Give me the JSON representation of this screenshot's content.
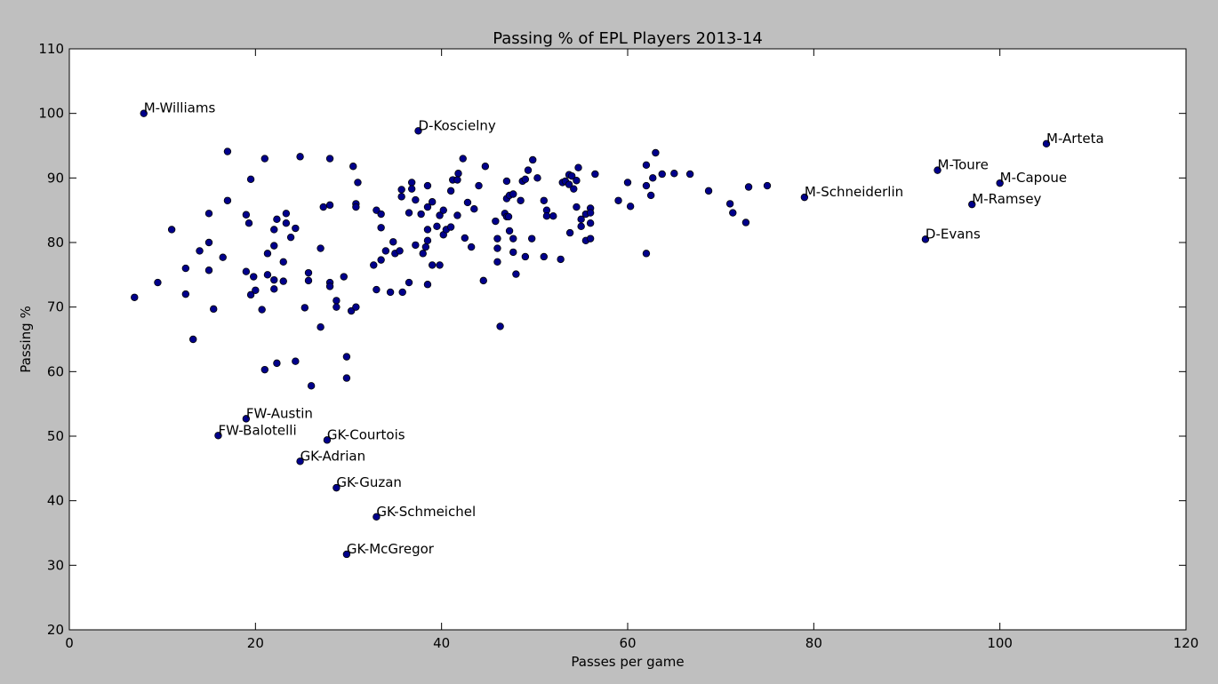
{
  "chart_data": {
    "type": "scatter",
    "title": "Passing % of EPL Players 2013-14",
    "xlabel": "Passes per game",
    "ylabel": "Passing %",
    "xlim": [
      0,
      120
    ],
    "ylim": [
      20,
      110
    ],
    "xticks": [
      0,
      20,
      40,
      60,
      80,
      100,
      120
    ],
    "yticks": [
      20,
      30,
      40,
      50,
      60,
      70,
      80,
      90,
      100,
      110
    ],
    "grid": false,
    "marker_color": "#00008b",
    "points": [
      [
        7.0,
        71.5
      ],
      [
        9.5,
        73.8
      ],
      [
        11.0,
        82.0
      ],
      [
        12.5,
        76.0
      ],
      [
        12.5,
        72.0
      ],
      [
        13.3,
        65.0
      ],
      [
        14.0,
        78.7
      ],
      [
        15.0,
        84.5
      ],
      [
        15.0,
        80.0
      ],
      [
        15.0,
        75.7
      ],
      [
        15.5,
        69.7
      ],
      [
        16.5,
        77.7
      ],
      [
        17.0,
        94.1
      ],
      [
        17.0,
        86.5
      ],
      [
        19.0,
        84.3
      ],
      [
        19.0,
        75.5
      ],
      [
        19.3,
        83.0
      ],
      [
        19.5,
        89.8
      ],
      [
        19.5,
        71.9
      ],
      [
        19.8,
        74.7
      ],
      [
        20.0,
        72.6
      ],
      [
        20.7,
        69.6
      ],
      [
        21.0,
        93.0
      ],
      [
        21.0,
        60.3
      ],
      [
        21.3,
        78.3
      ],
      [
        21.3,
        75.0
      ],
      [
        22.0,
        82.0
      ],
      [
        22.0,
        79.5
      ],
      [
        22.0,
        74.2
      ],
      [
        22.0,
        72.8
      ],
      [
        22.3,
        83.6
      ],
      [
        22.3,
        61.3
      ],
      [
        23.0,
        77.0
      ],
      [
        23.0,
        74.0
      ],
      [
        23.3,
        84.5
      ],
      [
        23.3,
        83.0
      ],
      [
        23.8,
        80.8
      ],
      [
        24.3,
        82.2
      ],
      [
        24.3,
        61.6
      ],
      [
        24.8,
        93.3
      ],
      [
        25.3,
        69.9
      ],
      [
        25.7,
        75.3
      ],
      [
        25.7,
        74.1
      ],
      [
        26.0,
        57.8
      ],
      [
        27.0,
        79.1
      ],
      [
        27.0,
        66.9
      ],
      [
        27.3,
        85.5
      ],
      [
        28.0,
        93.0
      ],
      [
        28.0,
        85.8
      ],
      [
        28.0,
        73.8
      ],
      [
        28.0,
        73.2
      ],
      [
        28.7,
        71.0
      ],
      [
        28.7,
        70.0
      ],
      [
        29.5,
        74.7
      ],
      [
        29.8,
        62.3
      ],
      [
        29.8,
        59.0
      ],
      [
        30.3,
        69.4
      ],
      [
        30.5,
        91.8
      ],
      [
        30.8,
        86.0
      ],
      [
        30.8,
        85.5
      ],
      [
        30.8,
        70.0
      ],
      [
        31.0,
        89.3
      ],
      [
        32.7,
        76.5
      ],
      [
        33.0,
        85.0
      ],
      [
        33.0,
        72.7
      ],
      [
        33.5,
        84.4
      ],
      [
        33.5,
        82.3
      ],
      [
        33.5,
        77.3
      ],
      [
        34.0,
        78.7
      ],
      [
        34.5,
        72.3
      ],
      [
        34.8,
        80.1
      ],
      [
        35.0,
        78.3
      ],
      [
        35.5,
        78.7
      ],
      [
        35.7,
        88.2
      ],
      [
        35.7,
        87.1
      ],
      [
        35.8,
        72.3
      ],
      [
        36.5,
        73.8
      ],
      [
        36.5,
        84.6
      ],
      [
        36.8,
        89.3
      ],
      [
        36.8,
        88.3
      ],
      [
        37.2,
        86.6
      ],
      [
        37.2,
        79.6
      ],
      [
        37.8,
        84.4
      ],
      [
        38.0,
        78.3
      ],
      [
        38.3,
        79.3
      ],
      [
        38.5,
        88.8
      ],
      [
        38.5,
        85.5
      ],
      [
        38.5,
        82.0
      ],
      [
        38.5,
        80.3
      ],
      [
        38.5,
        73.5
      ],
      [
        39.0,
        86.3
      ],
      [
        39.0,
        76.5
      ],
      [
        39.5,
        82.5
      ],
      [
        39.8,
        84.2
      ],
      [
        39.8,
        76.5
      ],
      [
        40.2,
        85.0
      ],
      [
        40.2,
        81.2
      ],
      [
        40.5,
        82.0
      ],
      [
        41.0,
        88.0
      ],
      [
        41.0,
        82.4
      ],
      [
        41.2,
        89.7
      ],
      [
        41.7,
        89.7
      ],
      [
        41.7,
        84.2
      ],
      [
        41.8,
        90.7
      ],
      [
        42.3,
        93.0
      ],
      [
        42.5,
        80.7
      ],
      [
        42.8,
        86.2
      ],
      [
        43.2,
        79.3
      ],
      [
        43.5,
        85.2
      ],
      [
        44.0,
        88.8
      ],
      [
        44.5,
        74.1
      ],
      [
        44.7,
        91.8
      ],
      [
        45.8,
        83.3
      ],
      [
        46.0,
        80.6
      ],
      [
        46.0,
        79.1
      ],
      [
        46.0,
        77.0
      ],
      [
        46.3,
        67.0
      ],
      [
        46.8,
        84.5
      ],
      [
        47.0,
        89.5
      ],
      [
        47.0,
        86.8
      ],
      [
        47.0,
        84.0
      ],
      [
        47.2,
        84.0
      ],
      [
        47.3,
        81.8
      ],
      [
        47.3,
        87.3
      ],
      [
        47.7,
        87.5
      ],
      [
        47.7,
        80.6
      ],
      [
        47.7,
        78.5
      ],
      [
        48.0,
        75.1
      ],
      [
        48.5,
        86.5
      ],
      [
        48.7,
        89.5
      ],
      [
        49.0,
        89.8
      ],
      [
        49.0,
        77.8
      ],
      [
        49.3,
        91.2
      ],
      [
        49.7,
        80.6
      ],
      [
        49.8,
        92.8
      ],
      [
        50.3,
        90.0
      ],
      [
        51.0,
        86.5
      ],
      [
        51.0,
        77.8
      ],
      [
        51.3,
        85.0
      ],
      [
        51.3,
        84.1
      ],
      [
        52.0,
        84.1
      ],
      [
        52.8,
        77.4
      ],
      [
        53.0,
        89.3
      ],
      [
        53.3,
        89.5
      ],
      [
        53.7,
        90.5
      ],
      [
        53.7,
        89.0
      ],
      [
        53.8,
        81.5
      ],
      [
        54.0,
        90.3
      ],
      [
        54.2,
        88.3
      ],
      [
        54.5,
        85.5
      ],
      [
        54.5,
        89.6
      ],
      [
        54.7,
        91.6
      ],
      [
        55.0,
        83.6
      ],
      [
        55.0,
        82.5
      ],
      [
        55.5,
        84.4
      ],
      [
        55.5,
        80.3
      ],
      [
        56.0,
        85.3
      ],
      [
        56.0,
        84.6
      ],
      [
        56.0,
        83.0
      ],
      [
        56.0,
        80.6
      ],
      [
        56.5,
        90.6
      ],
      [
        59.0,
        86.5
      ],
      [
        60.0,
        89.3
      ],
      [
        60.3,
        85.6
      ],
      [
        62.0,
        92.0
      ],
      [
        62.0,
        88.8
      ],
      [
        62.0,
        78.3
      ],
      [
        62.5,
        87.3
      ],
      [
        62.7,
        90.0
      ],
      [
        63.0,
        93.9
      ],
      [
        63.7,
        90.6
      ],
      [
        65.0,
        90.7
      ],
      [
        66.7,
        90.6
      ],
      [
        68.7,
        88.0
      ],
      [
        71.0,
        86.0
      ],
      [
        71.3,
        84.6
      ],
      [
        72.7,
        83.1
      ],
      [
        73.0,
        88.6
      ],
      [
        75.0,
        88.8
      ],
      [
        8.0,
        100.0
      ],
      [
        37.5,
        97.3
      ],
      [
        105.0,
        95.3
      ],
      [
        93.3,
        91.2
      ],
      [
        100.0,
        89.2
      ],
      [
        79.0,
        87.0
      ],
      [
        97.0,
        85.9
      ],
      [
        92.0,
        80.5
      ],
      [
        19.0,
        52.7
      ],
      [
        16.0,
        50.1
      ],
      [
        27.7,
        49.4
      ],
      [
        24.8,
        46.1
      ],
      [
        28.7,
        42.0
      ],
      [
        33.0,
        37.5
      ],
      [
        29.8,
        31.7
      ]
    ],
    "annotations": [
      {
        "label": "M-Williams",
        "x": 8.0,
        "y": 100.0
      },
      {
        "label": "D-Koscielny",
        "x": 37.5,
        "y": 97.3
      },
      {
        "label": "M-Arteta",
        "x": 105.0,
        "y": 95.3
      },
      {
        "label": "M-Toure",
        "x": 93.3,
        "y": 91.2
      },
      {
        "label": "M-Capoue",
        "x": 100.0,
        "y": 89.2
      },
      {
        "label": "M-Schneiderlin",
        "x": 79.0,
        "y": 87.0
      },
      {
        "label": "M-Ramsey",
        "x": 97.0,
        "y": 85.9
      },
      {
        "label": "D-Evans",
        "x": 92.0,
        "y": 80.5
      },
      {
        "label": "FW-Austin",
        "x": 19.0,
        "y": 52.7
      },
      {
        "label": "FW-Balotelli",
        "x": 16.0,
        "y": 50.1
      },
      {
        "label": "GK-Courtois",
        "x": 27.7,
        "y": 49.4
      },
      {
        "label": "GK-Adrian",
        "x": 24.8,
        "y": 46.1
      },
      {
        "label": "GK-Guzan",
        "x": 28.7,
        "y": 42.0
      },
      {
        "label": "GK-Schmeichel",
        "x": 33.0,
        "y": 37.5
      },
      {
        "label": "GK-McGregor",
        "x": 29.8,
        "y": 31.7
      }
    ]
  }
}
